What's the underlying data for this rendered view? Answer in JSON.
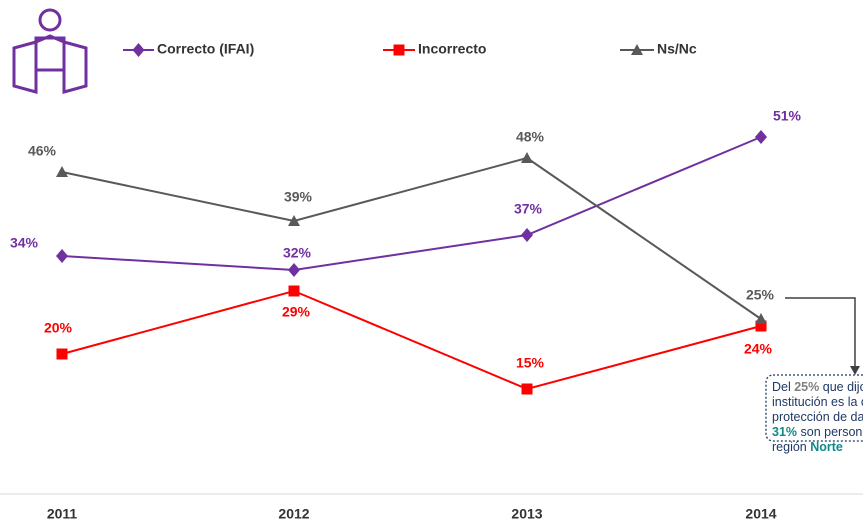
{
  "chart_data": {
    "type": "line",
    "categories": [
      "2011",
      "2012",
      "2013",
      "2014"
    ],
    "series": [
      {
        "name": "Correcto (IFAI)",
        "color": "#7030a0",
        "marker": "diamond",
        "values": [
          34,
          32,
          37,
          51
        ],
        "value_labels": [
          "34%",
          "32%",
          "37%",
          "51%"
        ]
      },
      {
        "name": "Incorrecto",
        "color": "#ff0000",
        "marker": "square",
        "values": [
          20,
          29,
          15,
          24
        ],
        "value_labels": [
          "20%",
          "29%",
          "15%",
          "24%"
        ]
      },
      {
        "name": "Ns/Nc",
        "color": "#595959",
        "marker": "triangle",
        "values": [
          46,
          39,
          48,
          25
        ],
        "value_labels": [
          "46%",
          "39%",
          "48%",
          "25%"
        ]
      }
    ],
    "ylim": [
      0,
      70
    ],
    "annotation": {
      "lines": [
        [
          "Del ",
          "25%",
          " que dijo"
        ],
        [
          "institución es la c"
        ],
        [
          "protección de dat"
        ],
        [
          "31%",
          " son personas"
        ],
        [
          "región ",
          "Norte"
        ]
      ]
    }
  }
}
